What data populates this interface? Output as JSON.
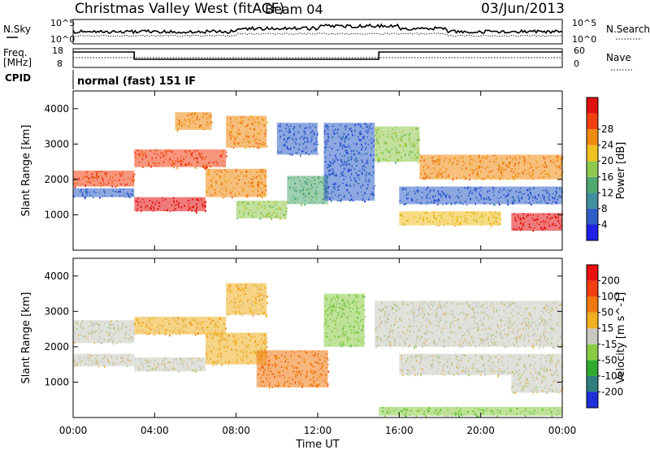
{
  "header": {
    "station": "Christmas Valley West (fitACF)",
    "beam": "Beam 04",
    "date": "03/Jun/2013"
  },
  "top_panels": {
    "nsky_label": "N.Sky",
    "nsearch_label": "N.Search",
    "noise_ticks": [
      "10^5",
      "10^0"
    ],
    "freq_label": "Freq.",
    "freq_unit": "[MHz]",
    "freq_ticks": [
      "18",
      "8"
    ],
    "nave_label": "Nave",
    "nave_ticks": [
      "60",
      "0"
    ],
    "cpid_label": "CPID",
    "cpid_value": "normal (fast) 151 IF"
  },
  "colors": {
    "power": [
      "#1f1fe8",
      "#2f5fc8",
      "#3f8f9f",
      "#4fa86f",
      "#8fc84f",
      "#f0c020",
      "#f08a10",
      "#f04010",
      "#e01010"
    ],
    "velocity": [
      "#1f2fd8",
      "#2f7f7f",
      "#2faa2f",
      "#88cc44",
      "#c8c8c0",
      "#f0b020",
      "#f07810",
      "#f04010",
      "#e81010"
    ]
  },
  "chart_data": [
    {
      "type": "heatmap",
      "name": "power",
      "xlabel": "",
      "ylabel": "Slant Range [km]",
      "xlim": [
        0,
        24
      ],
      "ylim": [
        0,
        4500
      ],
      "y_ticks": [
        1000,
        2000,
        3000,
        4000
      ],
      "colorbar": {
        "label": "Power [dB]",
        "ticks": [
          "4",
          "8",
          "12",
          "16",
          "20",
          "24",
          "28"
        ],
        "range": [
          0,
          32
        ]
      },
      "bands": [
        {
          "t0": 0.0,
          "t1": 3.0,
          "r0": 1800,
          "r1": 2250,
          "color_index": 7
        },
        {
          "t0": 0.0,
          "t1": 3.0,
          "r0": 1500,
          "r1": 1750,
          "color_index": 1
        },
        {
          "t0": 3.0,
          "t1": 7.5,
          "r0": 2350,
          "r1": 2850,
          "color_index": 7
        },
        {
          "t0": 3.0,
          "t1": 6.5,
          "r0": 1100,
          "r1": 1500,
          "color_index": 8
        },
        {
          "t0": 6.5,
          "t1": 9.5,
          "r0": 1500,
          "r1": 2300,
          "color_index": 6
        },
        {
          "t0": 7.5,
          "t1": 9.5,
          "r0": 2900,
          "r1": 3800,
          "color_index": 6
        },
        {
          "t0": 5.0,
          "t1": 6.8,
          "r0": 3400,
          "r1": 3900,
          "color_index": 6
        },
        {
          "t0": 8.0,
          "t1": 10.5,
          "r0": 900,
          "r1": 1400,
          "color_index": 4
        },
        {
          "t0": 10.5,
          "t1": 12.5,
          "r0": 1300,
          "r1": 2100,
          "color_index": 3
        },
        {
          "t0": 10.0,
          "t1": 12.0,
          "r0": 2700,
          "r1": 3600,
          "color_index": 1
        },
        {
          "t0": 12.3,
          "t1": 14.8,
          "r0": 1400,
          "r1": 3600,
          "color_index": 1
        },
        {
          "t0": 14.8,
          "t1": 17.0,
          "r0": 2500,
          "r1": 3500,
          "color_index": 4
        },
        {
          "t0": 17.0,
          "t1": 24.0,
          "r0": 2000,
          "r1": 2700,
          "color_index": 6
        },
        {
          "t0": 16.0,
          "t1": 24.0,
          "r0": 1300,
          "r1": 1800,
          "color_index": 1
        },
        {
          "t0": 21.5,
          "t1": 24.0,
          "r0": 550,
          "r1": 1050,
          "color_index": 8
        },
        {
          "t0": 16.0,
          "t1": 21.0,
          "r0": 700,
          "r1": 1100,
          "color_index": 5
        }
      ]
    },
    {
      "type": "heatmap",
      "name": "velocity",
      "xlabel": "Time UT",
      "ylabel": "Slant Range [km]",
      "xlim": [
        0,
        24
      ],
      "ylim": [
        0,
        4500
      ],
      "x_ticks": [
        "00:00",
        "04:00",
        "08:00",
        "12:00",
        "16:00",
        "20:00",
        "00:00"
      ],
      "y_ticks": [
        1000,
        2000,
        3000,
        4000
      ],
      "colorbar": {
        "label": "Velocity [m s^-1]",
        "ticks": [
          "200",
          "100",
          "50",
          "15",
          "-15",
          "-50",
          "-100",
          "-200"
        ],
        "range": [
          -250,
          250
        ]
      },
      "bands": [
        {
          "t0": 0.0,
          "t1": 3.0,
          "r0": 2100,
          "r1": 2750,
          "color_index": 4
        },
        {
          "t0": 0.0,
          "t1": 3.0,
          "r0": 1450,
          "r1": 1800,
          "color_index": 4
        },
        {
          "t0": 3.0,
          "t1": 7.5,
          "r0": 2350,
          "r1": 2850,
          "color_index": 5
        },
        {
          "t0": 3.0,
          "t1": 6.5,
          "r0": 1300,
          "r1": 1700,
          "color_index": 4
        },
        {
          "t0": 6.5,
          "t1": 9.5,
          "r0": 1500,
          "r1": 2400,
          "color_index": 5
        },
        {
          "t0": 7.5,
          "t1": 9.5,
          "r0": 2900,
          "r1": 3800,
          "color_index": 5
        },
        {
          "t0": 9.0,
          "t1": 12.5,
          "r0": 850,
          "r1": 1900,
          "color_index": 6
        },
        {
          "t0": 12.3,
          "t1": 14.3,
          "r0": 2000,
          "r1": 3500,
          "color_index": 3
        },
        {
          "t0": 14.8,
          "t1": 24.0,
          "r0": 2000,
          "r1": 3300,
          "color_index": 4
        },
        {
          "t0": 16.0,
          "t1": 24.0,
          "r0": 1200,
          "r1": 1800,
          "color_index": 4
        },
        {
          "t0": 21.5,
          "t1": 24.0,
          "r0": 700,
          "r1": 1200,
          "color_index": 4
        },
        {
          "t0": 15.0,
          "t1": 24.0,
          "r0": 50,
          "r1": 300,
          "color_index": 3
        }
      ]
    }
  ]
}
